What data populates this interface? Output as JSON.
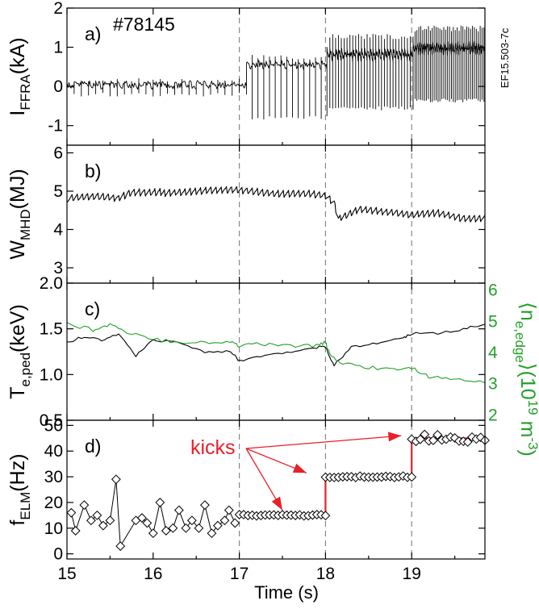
{
  "figure_id": "EF15.503-7c",
  "shot_label": "#78145",
  "annotation": "kicks",
  "colors": {
    "trace": "#000000",
    "density": "#22a02a",
    "kicks": "#e8202a",
    "vline": "#888888"
  },
  "chart_data": [
    {
      "type": "line",
      "panel_label": "a)",
      "ylabel_main": "I",
      "ylabel_sub": "FFRA",
      "ylabel_unit": "(kA)",
      "ylim": [
        -1.5,
        2
      ],
      "yticks": [
        "-1",
        "0",
        "1",
        "2"
      ],
      "segments": [
        {
          "x_range": [
            15.0,
            17.0
          ],
          "baseline": 0.0,
          "spike_low": -0.25,
          "spike_high": 0.2,
          "spike_rate_hz": 12
        },
        {
          "x_range": [
            17.0,
            18.0
          ],
          "baseline": 0.5,
          "spike_low": -0.85,
          "spike_high": 0.8,
          "spike_rate_hz": 15
        },
        {
          "x_range": [
            18.0,
            19.0
          ],
          "baseline": 0.7,
          "spike_low": -0.6,
          "spike_high": 1.35,
          "spike_rate_hz": 30
        },
        {
          "x_range": [
            19.0,
            19.85
          ],
          "baseline": 0.85,
          "spike_low": -0.4,
          "spike_high": 1.55,
          "spike_rate_hz": 45
        }
      ]
    },
    {
      "type": "line",
      "panel_label": "b)",
      "ylabel_main": "W",
      "ylabel_sub": "MHD",
      "ylabel_unit": "(MJ)",
      "ylim": [
        2.6,
        6.2
      ],
      "yticks": [
        "3",
        "4",
        "5",
        "6"
      ],
      "x": [
        15.0,
        15.3,
        15.6,
        15.75,
        16.0,
        16.4,
        16.8,
        17.0,
        17.4,
        17.8,
        18.0,
        18.1,
        18.15,
        18.4,
        18.8,
        19.0,
        19.3,
        19.6,
        19.85
      ],
      "y": [
        4.8,
        4.85,
        4.8,
        4.95,
        4.95,
        5.0,
        5.05,
        5.05,
        4.95,
        4.95,
        4.9,
        4.7,
        4.3,
        4.55,
        4.45,
        4.4,
        4.45,
        4.3,
        4.3
      ]
    },
    {
      "type": "line",
      "panel_label": "c)",
      "ylabel_main": "T",
      "ylabel_sub": "e,ped",
      "ylabel_unit": "(keV)",
      "ylim": [
        0.5,
        2.0
      ],
      "yticks": [
        "0.5",
        "1.0",
        "1.5",
        "2.0"
      ],
      "y2label": "⟨n_e,edge⟩(10^19 m^-3)",
      "y2label_parts": [
        "⟨n",
        "e,edge",
        "⟩(10",
        "19",
        " m",
        "-3",
        ")"
      ],
      "y2lim": [
        1.8,
        6.2
      ],
      "y2ticks": [
        "2",
        "3",
        "4",
        "5",
        "6"
      ],
      "series": [
        {
          "name": "T_e,ped",
          "color": "#000000",
          "x": [
            15.0,
            15.2,
            15.4,
            15.6,
            15.8,
            16.0,
            16.3,
            16.6,
            16.9,
            17.0,
            17.3,
            17.6,
            17.9,
            18.0,
            18.1,
            18.3,
            18.6,
            18.9,
            19.0,
            19.3,
            19.6,
            19.85
          ],
          "y": [
            1.35,
            1.42,
            1.38,
            1.45,
            1.2,
            1.38,
            1.35,
            1.25,
            1.25,
            1.15,
            1.2,
            1.25,
            1.3,
            1.3,
            1.1,
            1.3,
            1.35,
            1.4,
            1.45,
            1.45,
            1.5,
            1.55
          ]
        },
        {
          "name": "n_e,edge",
          "color": "#22a02a",
          "x": [
            15.0,
            15.3,
            15.5,
            15.7,
            16.0,
            16.3,
            16.6,
            16.9,
            17.0,
            17.3,
            17.6,
            17.9,
            18.0,
            18.05,
            18.2,
            18.5,
            18.8,
            19.0,
            19.2,
            19.5,
            19.85
          ],
          "y": [
            4.9,
            4.7,
            4.85,
            4.6,
            4.4,
            4.3,
            4.3,
            4.3,
            4.2,
            4.25,
            4.2,
            4.2,
            4.3,
            3.9,
            3.6,
            3.5,
            3.4,
            3.5,
            3.2,
            3.1,
            3.0
          ]
        }
      ]
    },
    {
      "type": "scatter",
      "panel_label": "d)",
      "ylabel_main": "f",
      "ylabel_sub": "ELM",
      "ylabel_unit": "(Hz)",
      "xlabel": "Time (s)",
      "xlim": [
        15.0,
        19.85
      ],
      "xticks": [
        "15",
        "16",
        "17",
        "18",
        "19"
      ],
      "ylim": [
        -2,
        52
      ],
      "yticks": [
        "0",
        "10",
        "20",
        "30",
        "40",
        "50"
      ],
      "vlines_x": [
        17.0,
        18.0,
        19.0
      ],
      "x": [
        15.05,
        15.1,
        15.2,
        15.28,
        15.35,
        15.42,
        15.5,
        15.57,
        15.62,
        15.8,
        15.87,
        15.93,
        16.0,
        16.08,
        16.15,
        16.23,
        16.3,
        16.38,
        16.45,
        16.53,
        16.6,
        16.68,
        16.75,
        16.83,
        16.88,
        16.95
      ],
      "y": [
        16,
        9,
        19,
        13,
        15,
        11,
        13,
        29,
        3,
        13,
        14,
        12,
        8,
        20,
        9,
        10,
        17,
        10,
        13,
        10,
        19,
        8,
        11,
        13,
        17,
        12
      ],
      "series": [
        {
          "name": "ELM frequency",
          "x_range": [
            17.0,
            19.85
          ],
          "steps": [
            {
              "x_range": [
                17.0,
                18.0
              ],
              "value": 15
            },
            {
              "x_range": [
                18.0,
                19.0
              ],
              "value": 30
            },
            {
              "x_range": [
                19.0,
                19.85
              ],
              "value": 45
            }
          ]
        }
      ]
    }
  ]
}
